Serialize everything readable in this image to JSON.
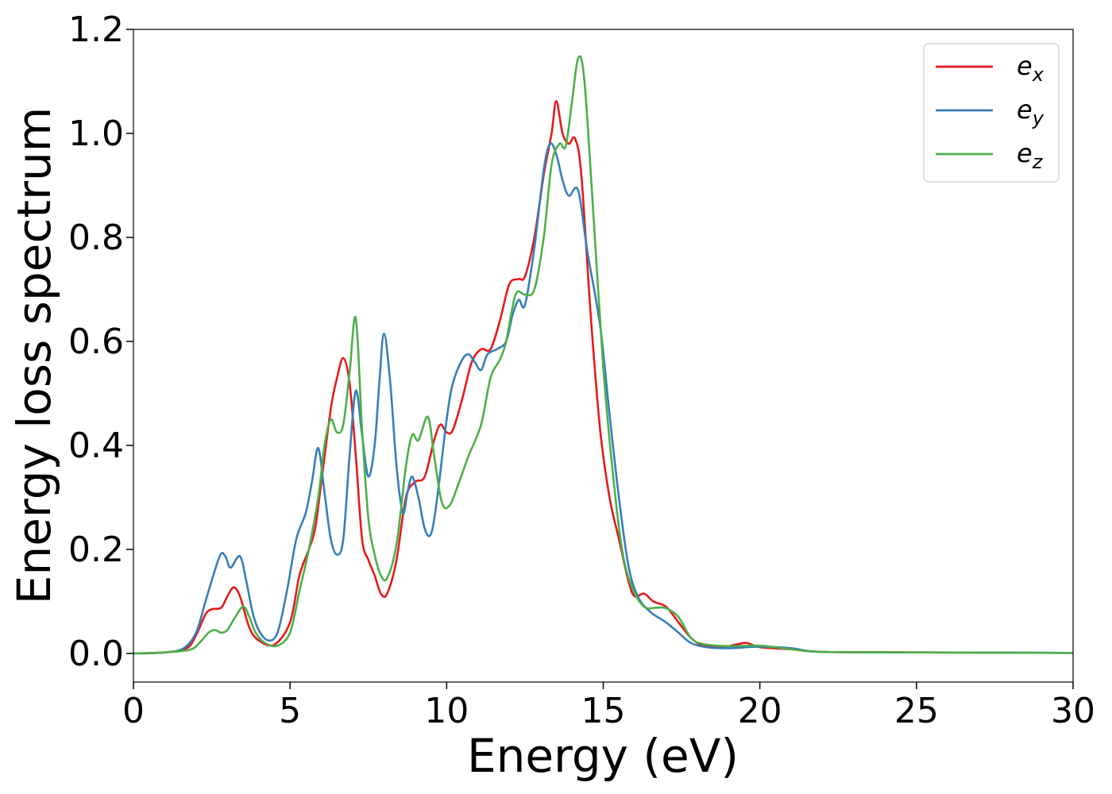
{
  "chart_data": {
    "type": "line",
    "xlabel": "Energy (eV)",
    "ylabel": "Energy loss spectrum",
    "xlim": [
      0,
      30
    ],
    "ylim": [
      -0.055,
      1.2
    ],
    "xticks": [
      "0",
      "5",
      "10",
      "15",
      "20",
      "25",
      "30"
    ],
    "yticks": [
      "0.0",
      "0.2",
      "0.4",
      "0.6",
      "0.8",
      "1.0",
      "1.2"
    ],
    "grid": false,
    "legend": "top-right",
    "series": [
      {
        "name": "e",
        "sub": "x",
        "color": "#e41a1c",
        "points": [
          [
            0,
            0
          ],
          [
            1,
            0.002
          ],
          [
            1.7,
            0.01
          ],
          [
            2.0,
            0.035
          ],
          [
            2.3,
            0.075
          ],
          [
            2.5,
            0.085
          ],
          [
            2.8,
            0.088
          ],
          [
            3.0,
            0.11
          ],
          [
            3.2,
            0.127
          ],
          [
            3.4,
            0.11
          ],
          [
            3.7,
            0.05
          ],
          [
            4.0,
            0.025
          ],
          [
            4.5,
            0.017
          ],
          [
            5.0,
            0.06
          ],
          [
            5.3,
            0.15
          ],
          [
            5.6,
            0.2
          ],
          [
            5.8,
            0.24
          ],
          [
            6.0,
            0.33
          ],
          [
            6.3,
            0.47
          ],
          [
            6.5,
            0.53
          ],
          [
            6.7,
            0.568
          ],
          [
            6.9,
            0.52
          ],
          [
            7.1,
            0.38
          ],
          [
            7.3,
            0.22
          ],
          [
            7.5,
            0.18
          ],
          [
            7.7,
            0.15
          ],
          [
            7.9,
            0.115
          ],
          [
            8.1,
            0.115
          ],
          [
            8.4,
            0.18
          ],
          [
            8.7,
            0.3
          ],
          [
            9.0,
            0.33
          ],
          [
            9.3,
            0.34
          ],
          [
            9.6,
            0.41
          ],
          [
            9.8,
            0.44
          ],
          [
            10.0,
            0.425
          ],
          [
            10.2,
            0.43
          ],
          [
            10.5,
            0.49
          ],
          [
            10.8,
            0.56
          ],
          [
            11.1,
            0.585
          ],
          [
            11.4,
            0.585
          ],
          [
            11.7,
            0.64
          ],
          [
            12.0,
            0.71
          ],
          [
            12.3,
            0.72
          ],
          [
            12.5,
            0.725
          ],
          [
            12.8,
            0.8
          ],
          [
            13.1,
            0.92
          ],
          [
            13.35,
            1.0
          ],
          [
            13.5,
            1.062
          ],
          [
            13.7,
            1.0
          ],
          [
            13.9,
            0.98
          ],
          [
            14.1,
            0.99
          ],
          [
            14.3,
            0.92
          ],
          [
            14.6,
            0.65
          ],
          [
            14.9,
            0.43
          ],
          [
            15.2,
            0.3
          ],
          [
            15.5,
            0.22
          ],
          [
            15.8,
            0.14
          ],
          [
            16.0,
            0.11
          ],
          [
            16.3,
            0.115
          ],
          [
            16.6,
            0.1
          ],
          [
            17.0,
            0.09
          ],
          [
            17.4,
            0.06
          ],
          [
            17.8,
            0.03
          ],
          [
            18.2,
            0.015
          ],
          [
            18.8,
            0.012
          ],
          [
            19.3,
            0.018
          ],
          [
            19.6,
            0.02
          ],
          [
            20.0,
            0.012
          ],
          [
            21,
            0.008
          ],
          [
            22,
            0.003
          ],
          [
            25,
            0.002
          ],
          [
            30,
            0.001
          ]
        ]
      },
      {
        "name": "e",
        "sub": "y",
        "color": "#377eb8",
        "points": [
          [
            0,
            0
          ],
          [
            1,
            0.002
          ],
          [
            1.6,
            0.01
          ],
          [
            2.0,
            0.04
          ],
          [
            2.3,
            0.1
          ],
          [
            2.6,
            0.16
          ],
          [
            2.8,
            0.192
          ],
          [
            2.95,
            0.185
          ],
          [
            3.1,
            0.165
          ],
          [
            3.4,
            0.187
          ],
          [
            3.6,
            0.14
          ],
          [
            3.8,
            0.08
          ],
          [
            4.0,
            0.045
          ],
          [
            4.3,
            0.025
          ],
          [
            4.6,
            0.04
          ],
          [
            4.9,
            0.12
          ],
          [
            5.2,
            0.22
          ],
          [
            5.5,
            0.27
          ],
          [
            5.7,
            0.33
          ],
          [
            5.9,
            0.395
          ],
          [
            6.1,
            0.31
          ],
          [
            6.3,
            0.22
          ],
          [
            6.5,
            0.19
          ],
          [
            6.7,
            0.22
          ],
          [
            6.9,
            0.38
          ],
          [
            7.1,
            0.505
          ],
          [
            7.3,
            0.42
          ],
          [
            7.5,
            0.34
          ],
          [
            7.7,
            0.4
          ],
          [
            7.85,
            0.52
          ],
          [
            8.0,
            0.615
          ],
          [
            8.2,
            0.52
          ],
          [
            8.4,
            0.36
          ],
          [
            8.6,
            0.27
          ],
          [
            8.75,
            0.31
          ],
          [
            8.9,
            0.34
          ],
          [
            9.1,
            0.3
          ],
          [
            9.3,
            0.24
          ],
          [
            9.5,
            0.23
          ],
          [
            9.7,
            0.3
          ],
          [
            10.0,
            0.45
          ],
          [
            10.2,
            0.52
          ],
          [
            10.5,
            0.565
          ],
          [
            10.7,
            0.575
          ],
          [
            10.9,
            0.56
          ],
          [
            11.1,
            0.545
          ],
          [
            11.3,
            0.575
          ],
          [
            11.6,
            0.585
          ],
          [
            11.9,
            0.6
          ],
          [
            12.1,
            0.65
          ],
          [
            12.3,
            0.68
          ],
          [
            12.5,
            0.67
          ],
          [
            12.8,
            0.78
          ],
          [
            13.1,
            0.93
          ],
          [
            13.3,
            0.98
          ],
          [
            13.5,
            0.96
          ],
          [
            13.7,
            0.91
          ],
          [
            13.9,
            0.88
          ],
          [
            14.2,
            0.89
          ],
          [
            14.5,
            0.77
          ],
          [
            14.9,
            0.63
          ],
          [
            15.2,
            0.46
          ],
          [
            15.5,
            0.3
          ],
          [
            15.8,
            0.17
          ],
          [
            16.1,
            0.11
          ],
          [
            16.5,
            0.08
          ],
          [
            17.0,
            0.06
          ],
          [
            17.4,
            0.04
          ],
          [
            17.8,
            0.02
          ],
          [
            18.3,
            0.012
          ],
          [
            19.0,
            0.01
          ],
          [
            20.0,
            0.013
          ],
          [
            21.0,
            0.01
          ],
          [
            22,
            0.003
          ],
          [
            25,
            0.002
          ],
          [
            30,
            0.001
          ]
        ]
      },
      {
        "name": "e",
        "sub": "z",
        "color": "#4daf4a",
        "points": [
          [
            0,
            0
          ],
          [
            1,
            0.002
          ],
          [
            1.8,
            0.007
          ],
          [
            2.1,
            0.02
          ],
          [
            2.4,
            0.04
          ],
          [
            2.6,
            0.045
          ],
          [
            2.8,
            0.04
          ],
          [
            3.0,
            0.045
          ],
          [
            3.2,
            0.065
          ],
          [
            3.5,
            0.09
          ],
          [
            3.7,
            0.07
          ],
          [
            3.9,
            0.04
          ],
          [
            4.2,
            0.02
          ],
          [
            4.6,
            0.015
          ],
          [
            5.0,
            0.04
          ],
          [
            5.3,
            0.12
          ],
          [
            5.6,
            0.2
          ],
          [
            5.9,
            0.3
          ],
          [
            6.1,
            0.4
          ],
          [
            6.3,
            0.45
          ],
          [
            6.5,
            0.425
          ],
          [
            6.7,
            0.44
          ],
          [
            6.9,
            0.54
          ],
          [
            7.1,
            0.645
          ],
          [
            7.3,
            0.43
          ],
          [
            7.5,
            0.26
          ],
          [
            7.7,
            0.19
          ],
          [
            7.9,
            0.15
          ],
          [
            8.1,
            0.145
          ],
          [
            8.4,
            0.21
          ],
          [
            8.7,
            0.36
          ],
          [
            8.9,
            0.42
          ],
          [
            9.1,
            0.41
          ],
          [
            9.4,
            0.455
          ],
          [
            9.6,
            0.38
          ],
          [
            9.85,
            0.29
          ],
          [
            10.1,
            0.285
          ],
          [
            10.4,
            0.33
          ],
          [
            10.7,
            0.38
          ],
          [
            11.1,
            0.44
          ],
          [
            11.4,
            0.53
          ],
          [
            11.7,
            0.565
          ],
          [
            11.9,
            0.6
          ],
          [
            12.2,
            0.69
          ],
          [
            12.5,
            0.69
          ],
          [
            12.8,
            0.7
          ],
          [
            13.1,
            0.8
          ],
          [
            13.35,
            0.94
          ],
          [
            13.6,
            0.98
          ],
          [
            13.8,
            0.975
          ],
          [
            14.0,
            1.06
          ],
          [
            14.2,
            1.145
          ],
          [
            14.4,
            1.1
          ],
          [
            14.7,
            0.83
          ],
          [
            15.0,
            0.55
          ],
          [
            15.3,
            0.35
          ],
          [
            15.6,
            0.2
          ],
          [
            15.9,
            0.13
          ],
          [
            16.3,
            0.09
          ],
          [
            16.7,
            0.088
          ],
          [
            17.0,
            0.087
          ],
          [
            17.4,
            0.07
          ],
          [
            17.8,
            0.03
          ],
          [
            18.2,
            0.018
          ],
          [
            19.0,
            0.014
          ],
          [
            20.0,
            0.015
          ],
          [
            21,
            0.008
          ],
          [
            22,
            0.003
          ],
          [
            25,
            0.002
          ],
          [
            30,
            0.001
          ]
        ]
      }
    ]
  }
}
